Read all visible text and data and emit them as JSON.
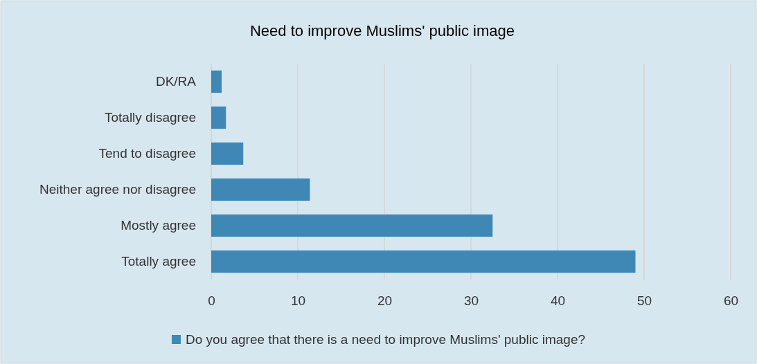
{
  "chart_data": {
    "type": "bar",
    "orientation": "horizontal",
    "title": "Need to improve Muslims' public image",
    "categories": [
      "DK/RA",
      "Totally disagree",
      "Tend to disagree",
      "Neither agree nor disagree",
      "Mostly agree",
      "Totally agree"
    ],
    "series": [
      {
        "name": "Do you agree that there is a need to improve Muslims' public image?",
        "color": "#3f88b5",
        "values": [
          1.2,
          1.7,
          3.7,
          11.4,
          32.5,
          49
        ]
      }
    ],
    "xlim": [
      0,
      60
    ],
    "xticks": [
      0,
      10,
      20,
      30,
      40,
      50,
      60
    ],
    "grid": "x",
    "legend": "bottom"
  }
}
